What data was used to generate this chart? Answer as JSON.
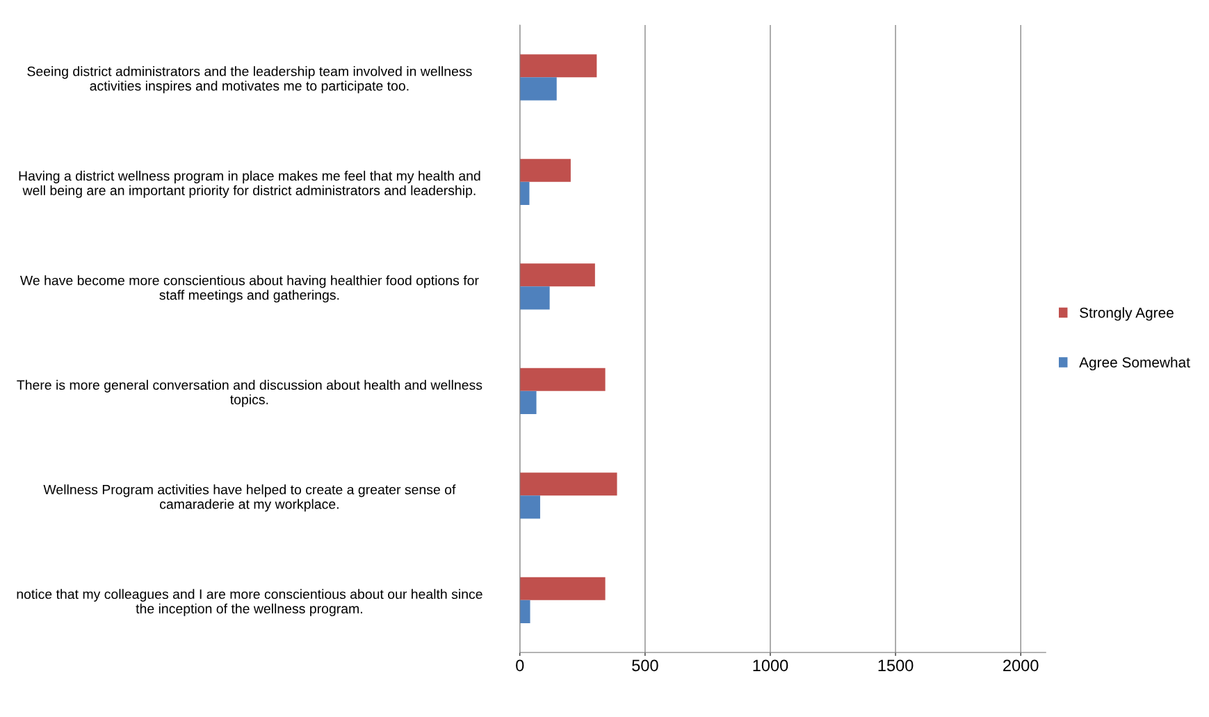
{
  "chart_data": {
    "type": "bar",
    "orientation": "horizontal",
    "categories": [
      "Seeing district administrators and the leadership team involved in wellness\nactivities inspires and motivates me to participate too.",
      "Having a district wellness program in place makes me feel that my health and\nwell being are an important priority for district administrators and leadership.",
      "We have become more conscientious about having healthier food options for\nstaff meetings and gatherings.",
      "There is more general conversation and discussion about health and wellness\ntopics.",
      "Wellness Program activities have helped to create a greater sense of\ncamaraderie at my workplace.",
      "notice that my colleagues and I are more conscientious about our health since\nthe inception of the wellness program."
    ],
    "series": [
      {
        "name": "Strongly Agree",
        "color": "#c0504d",
        "values": [
          307,
          203,
          300,
          341,
          388,
          341
        ]
      },
      {
        "name": "Agree Somewhat",
        "color": "#4f81bd",
        "values": [
          147,
          38,
          119,
          66,
          81,
          41
        ]
      }
    ],
    "xlim": [
      0,
      2100
    ],
    "xticks": [
      0,
      500,
      1000,
      1500,
      2000
    ],
    "grid": "x",
    "legend": "right"
  }
}
